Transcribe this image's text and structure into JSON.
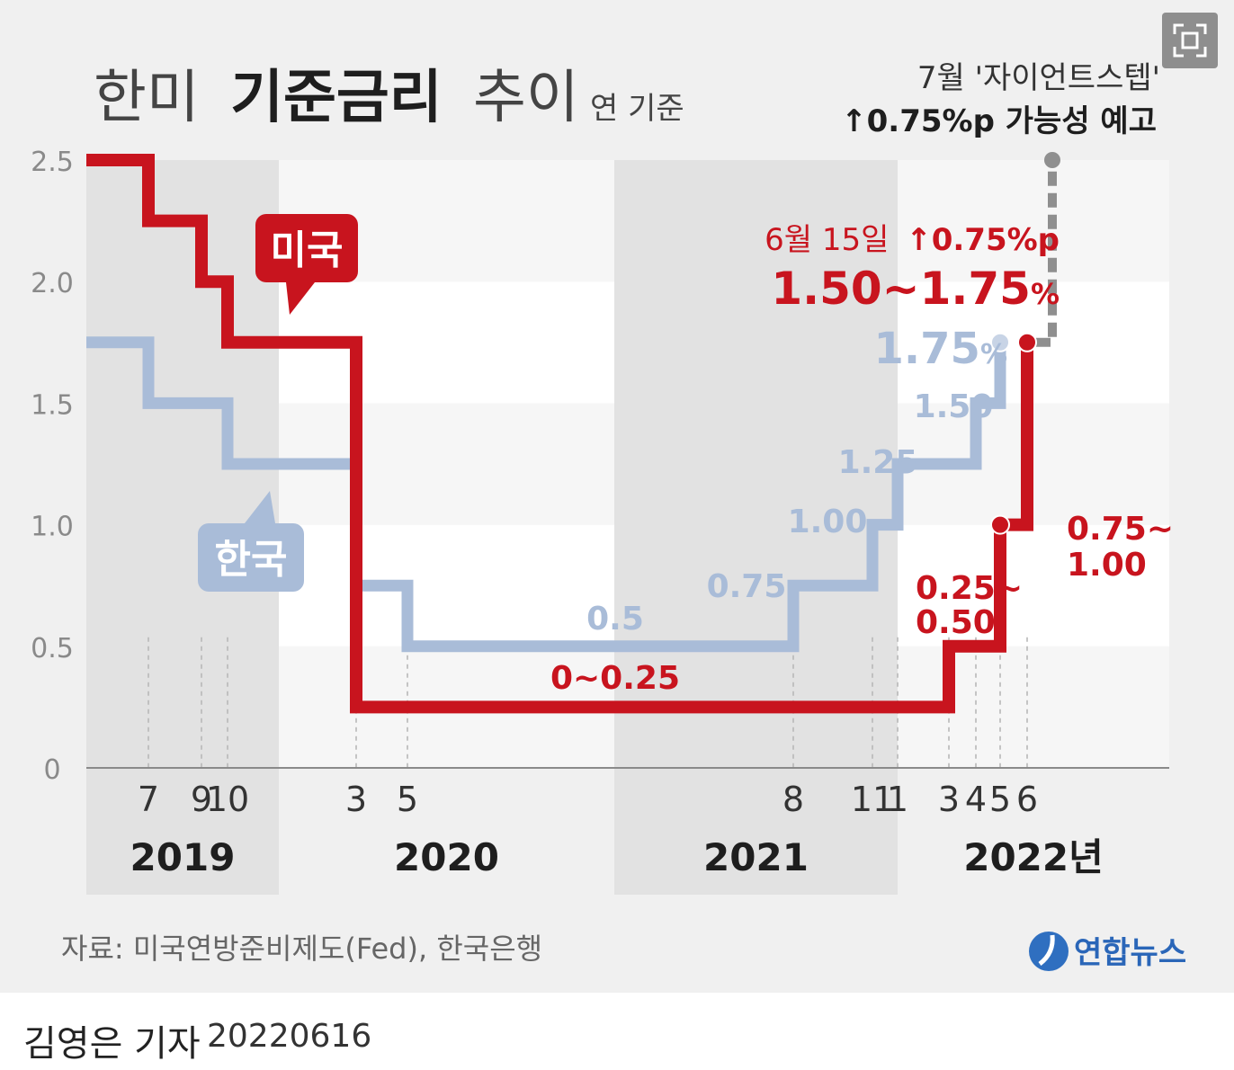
{
  "chart_data": {
    "type": "line",
    "step": true,
    "title_parts": [
      "한미",
      "기준금리",
      "추이"
    ],
    "unit_note": "연 기준",
    "ylim": [
      0,
      2.5
    ],
    "y_ticks": [
      "0",
      "0.5",
      "1.0",
      "1.5",
      "2.0",
      "2.5"
    ],
    "month_ticks": [
      {
        "x": "2019-07",
        "label": "7"
      },
      {
        "x": "2019-09",
        "label": "9"
      },
      {
        "x": "2019-10",
        "label": "10"
      },
      {
        "x": "2020-03",
        "label": "3"
      },
      {
        "x": "2020-05",
        "label": "5"
      },
      {
        "x": "2021-08",
        "label": "8"
      },
      {
        "x": "2021-11",
        "label": "11"
      },
      {
        "x": "2022-01",
        "label": "1"
      },
      {
        "x": "2022-03",
        "label": "3"
      },
      {
        "x": "2022-04",
        "label": "4"
      },
      {
        "x": "2022-05",
        "label": "5"
      },
      {
        "x": "2022-06",
        "label": "6"
      }
    ],
    "year_labels": [
      {
        "year": "2019",
        "text": "2019"
      },
      {
        "year": "2020",
        "text": "2020"
      },
      {
        "year": "2021",
        "text": "2021"
      },
      {
        "year": "2022",
        "text": "2022년"
      }
    ],
    "series": [
      {
        "name": "미국",
        "color": "#c8141e",
        "points": [
          {
            "x": "2019-01",
            "y": 2.5
          },
          {
            "x": "2019-07",
            "y": 2.25
          },
          {
            "x": "2019-09",
            "y": 2.0
          },
          {
            "x": "2019-10",
            "y": 1.75
          },
          {
            "x": "2020-03",
            "y": 1.25
          },
          {
            "x": "2020-03",
            "y": 0.25
          },
          {
            "x": "2022-03",
            "y": 0.5
          },
          {
            "x": "2022-05",
            "y": 1.0
          },
          {
            "x": "2022-06",
            "y": 1.75
          }
        ]
      },
      {
        "name": "한국",
        "color": "#a9bcd8",
        "points": [
          {
            "x": "2019-01",
            "y": 1.75
          },
          {
            "x": "2019-07",
            "y": 1.5
          },
          {
            "x": "2019-10",
            "y": 1.25
          },
          {
            "x": "2020-03",
            "y": 0.75
          },
          {
            "x": "2020-05",
            "y": 0.5
          },
          {
            "x": "2021-08",
            "y": 0.75
          },
          {
            "x": "2021-11",
            "y": 1.0
          },
          {
            "x": "2022-01",
            "y": 1.25
          },
          {
            "x": "2022-04",
            "y": 1.5
          },
          {
            "x": "2022-05",
            "y": 1.75
          }
        ]
      }
    ],
    "projection": {
      "x": "2022-07",
      "from": 1.75,
      "to": 2.5,
      "color": "#8f8f8f"
    },
    "data_labels": {
      "us": [
        "0~0.25",
        "0.25~",
        "0.50",
        "0.75~",
        "1.00"
      ],
      "kr": [
        "0.5",
        "0.75",
        "1.00",
        "1.25",
        "1.50"
      ]
    },
    "annotations": {
      "us_change_date": "6월 15일",
      "us_change": "↑0.75%p",
      "us_range": "1.50~1.75",
      "kr_latest": "1.75",
      "percent": "%",
      "projection_line1": "7월 '자이언트스텝'",
      "projection_line2": "↑0.75%p 가능성 예고"
    },
    "source": "자료: 미국연방준비제도(Fed), 한국은행",
    "logo": "연합뉴스"
  },
  "footer": {
    "byline": "김영은 기자",
    "date": "20220616"
  },
  "colors": {
    "us": "#c8141e",
    "kr": "#a9bcd8",
    "grid_band": "#ececec",
    "year_band": "#e2e2e2"
  }
}
